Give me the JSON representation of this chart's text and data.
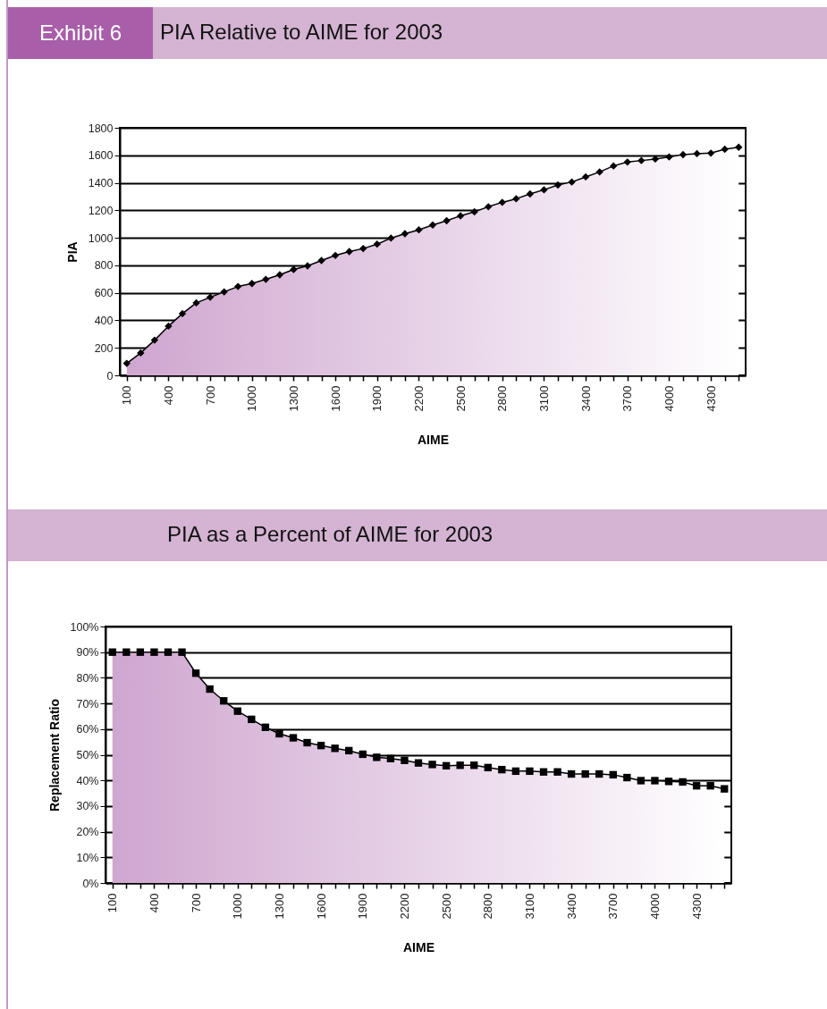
{
  "chart_data": [
    {
      "type": "area",
      "title": "PIA Relative to AIME for 2003",
      "annotations": [
        "Exhibit 6"
      ],
      "xlabel": "AIME",
      "ylabel": "PIA",
      "categories": [
        "100",
        null,
        null,
        "400",
        null,
        null,
        "700",
        null,
        null,
        "1000",
        null,
        null,
        "1300",
        null,
        null,
        "1600",
        null,
        null,
        "1900",
        null,
        null,
        "2200",
        null,
        null,
        "2500",
        null,
        null,
        "2800",
        null,
        null,
        "3100",
        null,
        null,
        "3400",
        null,
        null,
        "3700",
        null,
        null,
        "4000",
        null,
        null,
        "4300",
        null,
        null
      ],
      "values": [
        87,
        163,
        256,
        358,
        449,
        527,
        568,
        607,
        646,
        668,
        698,
        731,
        770,
        796,
        835,
        872,
        900,
        922,
        954,
        998,
        1030,
        1058,
        1093,
        1124,
        1160,
        1189,
        1226,
        1258,
        1284,
        1319,
        1349,
        1384,
        1406,
        1443,
        1479,
        1523,
        1551,
        1562,
        1573,
        1588,
        1605,
        1612,
        1616,
        1644,
        1659
      ],
      "color": "#cfa6cf",
      "marker": "diamond",
      "grid": "y",
      "ylim": [
        0,
        1800
      ],
      "yticks": [
        0,
        200,
        400,
        600,
        800,
        1000,
        1200,
        1400,
        1600,
        1800
      ]
    },
    {
      "type": "area",
      "title": "PIA as a Percent of AIME for 2003",
      "xlabel": "AIME",
      "ylabel": "Replacement Ratio",
      "categories": [
        "100",
        null,
        null,
        "400",
        null,
        null,
        "700",
        null,
        null,
        "1000",
        null,
        null,
        "1300",
        null,
        null,
        "1600",
        null,
        null,
        "1900",
        null,
        null,
        "2200",
        null,
        null,
        "2500",
        null,
        null,
        "2800",
        null,
        null,
        "3100",
        null,
        null,
        "3400",
        null,
        null,
        "3700",
        null,
        null,
        "4000",
        null,
        null,
        "4300",
        null,
        null
      ],
      "values": [
        90,
        90,
        90,
        90,
        90,
        90,
        81.8,
        75.6,
        71,
        67,
        63.8,
        60.7,
        58.2,
        56.6,
        54.7,
        53.6,
        52.5,
        51.6,
        50.2,
        49,
        48.5,
        47.8,
        46.8,
        46.2,
        45.7,
        45.9,
        45.9,
        45,
        44.2,
        43.6,
        43.6,
        43.3,
        43.3,
        42.5,
        42.5,
        42.5,
        42.2,
        41.1,
        39.9,
        39.9,
        39.6,
        39.4,
        37.9,
        37.9,
        36.7
      ],
      "color": "#cfa6cf",
      "marker": "square",
      "grid": "y",
      "ylim": [
        0,
        100
      ],
      "yticks": [
        {
          "value": 0,
          "label": "0%"
        },
        {
          "value": 10,
          "label": "10%"
        },
        {
          "value": 20,
          "label": "20%"
        },
        {
          "value": 30,
          "label": "30%"
        },
        {
          "value": 40,
          "label": "40%"
        },
        {
          "value": 50,
          "label": "50%"
        },
        {
          "value": 60,
          "label": "60%"
        },
        {
          "value": 70,
          "label": "70%"
        },
        {
          "value": 80,
          "label": "80%"
        },
        {
          "value": 90,
          "label": "90%"
        },
        {
          "value": 100,
          "label": "100%"
        }
      ]
    }
  ]
}
